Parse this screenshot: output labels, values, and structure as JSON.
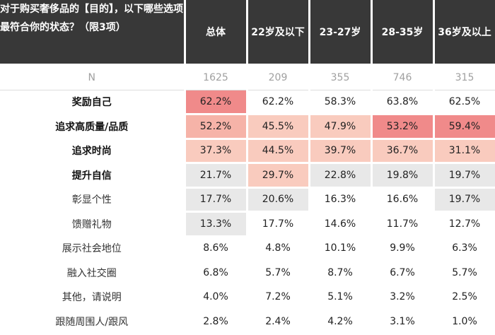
{
  "header": {
    "question": "对于购买奢侈品的【目的】，以下哪些选项最符合你的状态？（限3项）",
    "columns": [
      "总体",
      "22岁及以下",
      "23-27岁",
      "28-35岁",
      "36岁及以上"
    ]
  },
  "n_row": {
    "label": "N",
    "values": [
      "1625",
      "209",
      "355",
      "746",
      "315"
    ]
  },
  "rows": [
    {
      "label": "奖励自己",
      "values": [
        "62.2%",
        "62.2%",
        "58.3%",
        "63.8%",
        "62.5%"
      ]
    },
    {
      "label": "追求高质量/品质",
      "values": [
        "52.2%",
        "45.5%",
        "47.9%",
        "53.2%",
        "59.4%"
      ]
    },
    {
      "label": "追求时尚",
      "values": [
        "37.3%",
        "44.5%",
        "39.7%",
        "36.7%",
        "31.1%"
      ]
    },
    {
      "label": "提升自信",
      "values": [
        "21.7%",
        "29.7%",
        "22.8%",
        "19.8%",
        "19.7%"
      ]
    },
    {
      "label": "彰显个性",
      "values": [
        "17.7%",
        "20.6%",
        "16.3%",
        "16.6%",
        "19.7%"
      ]
    },
    {
      "label": "馈赠礼物",
      "values": [
        "13.3%",
        "17.7%",
        "14.6%",
        "11.7%",
        "12.7%"
      ]
    },
    {
      "label": "展示社会地位",
      "values": [
        "8.6%",
        "4.8%",
        "10.1%",
        "9.9%",
        "6.3%"
      ]
    },
    {
      "label": "融入社交圈",
      "values": [
        "6.8%",
        "5.7%",
        "8.7%",
        "6.7%",
        "5.7%"
      ]
    },
    {
      "label": "其他，请说明",
      "values": [
        "4.0%",
        "7.2%",
        "5.1%",
        "3.2%",
        "2.5%"
      ]
    },
    {
      "label": "跟随周围人/跟风",
      "values": [
        "2.8%",
        "2.4%",
        "4.2%",
        "3.1%",
        "1.0%"
      ]
    }
  ],
  "colors": {
    "header_bg": "#383838",
    "heat_high": "#f08a8a",
    "heat_mid": "#f6b3a8",
    "heat_low": "#f9cbbe",
    "cell_grey": "#e8e8e8"
  }
}
